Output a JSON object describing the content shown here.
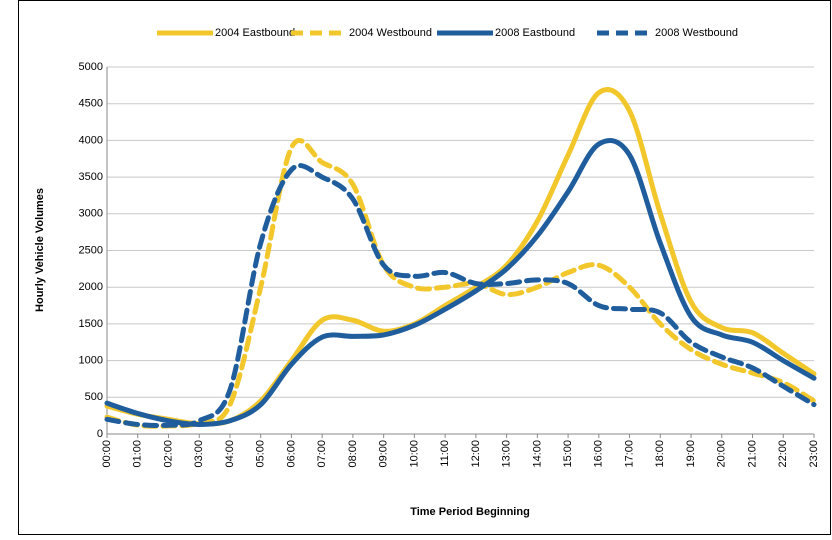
{
  "chart_data": {
    "type": "line",
    "y_label": "Hourly Vehicle Volumes",
    "x_label": "Time Period Beginning",
    "categories": [
      "00:00",
      "01:00",
      "02:00",
      "03:00",
      "04:00",
      "05:00",
      "06:00",
      "07:00",
      "08:00",
      "09:00",
      "10:00",
      "11:00",
      "12:00",
      "13:00",
      "14:00",
      "15:00",
      "16:00",
      "17:00",
      "18:00",
      "19:00",
      "20:00",
      "21:00",
      "22:00",
      "23:00"
    ],
    "series": [
      {
        "name": "2004 Eastbound",
        "color": "#f2c72c",
        "dashed": false,
        "values": [
          380,
          270,
          200,
          140,
          180,
          450,
          1000,
          1550,
          1550,
          1400,
          1500,
          1750,
          2000,
          2300,
          2900,
          3800,
          4650,
          4400,
          3000,
          1800,
          1450,
          1380,
          1100,
          820
        ]
      },
      {
        "name": "2004 Westbound",
        "color": "#f2c72c",
        "dashed": true,
        "values": [
          230,
          120,
          110,
          150,
          400,
          2000,
          3900,
          3700,
          3400,
          2300,
          2000,
          2000,
          2050,
          1900,
          2000,
          2200,
          2300,
          2000,
          1500,
          1150,
          950,
          830,
          700,
          450
        ]
      },
      {
        "name": "2008 Eastbound",
        "color": "#1f5d9c",
        "dashed": false,
        "values": [
          420,
          280,
          180,
          130,
          180,
          400,
          950,
          1320,
          1330,
          1350,
          1480,
          1700,
          1950,
          2250,
          2700,
          3300,
          3950,
          3800,
          2600,
          1600,
          1350,
          1250,
          1000,
          760
        ]
      },
      {
        "name": "2008 Westbound",
        "color": "#1f5d9c",
        "dashed": true,
        "values": [
          200,
          130,
          120,
          180,
          600,
          2600,
          3600,
          3500,
          3200,
          2300,
          2150,
          2200,
          2050,
          2050,
          2100,
          2050,
          1750,
          1700,
          1650,
          1250,
          1050,
          900,
          650,
          400
        ]
      }
    ],
    "ylim": [
      0,
      5000
    ],
    "yticks": [
      0,
      500,
      1000,
      1500,
      2000,
      2500,
      3000,
      3500,
      4000,
      4500,
      5000
    ],
    "grid": true,
    "legend": "top"
  }
}
